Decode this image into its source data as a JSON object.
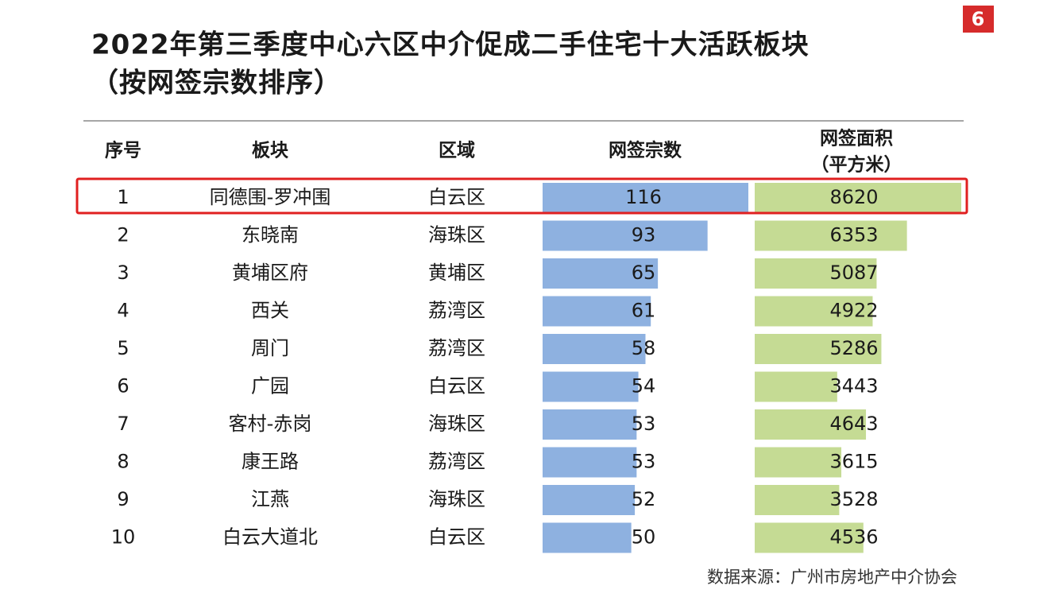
{
  "page_number": "6",
  "title": [
    "2022年第三季度中心六区中介促成二手住宅十大活跃板块",
    "（按网签宗数排序）"
  ],
  "table": {
    "headers": [
      "序号",
      "板块",
      "区域",
      "网签宗数",
      "网签面积"
    ],
    "header_unit": "（平方米）",
    "count_bar_color": "#8eb1e0",
    "area_bar_color": "#c5db94",
    "rows": [
      [
        1,
        "同德围-罗冲围",
        "白云区",
        116,
        8620
      ],
      [
        2,
        "东晓南",
        "海珠区",
        93,
        6353
      ],
      [
        3,
        "黄埔区府",
        "黄埔区",
        65,
        5087
      ],
      [
        4,
        "西关",
        "荔湾区",
        61,
        4922
      ],
      [
        5,
        "周门",
        "荔湾区",
        58,
        5286
      ],
      [
        6,
        "广园",
        "白云区",
        54,
        3443
      ],
      [
        7,
        "客村-赤岗",
        "海珠区",
        53,
        4643
      ],
      [
        8,
        "康王路",
        "荔湾区",
        53,
        3615
      ],
      [
        9,
        "江燕",
        "海珠区",
        52,
        3528
      ],
      [
        10,
        "白云大道北",
        "白云区",
        50,
        4536
      ]
    ]
  },
  "source": "数据来源：广州市房地产中介协会"
}
